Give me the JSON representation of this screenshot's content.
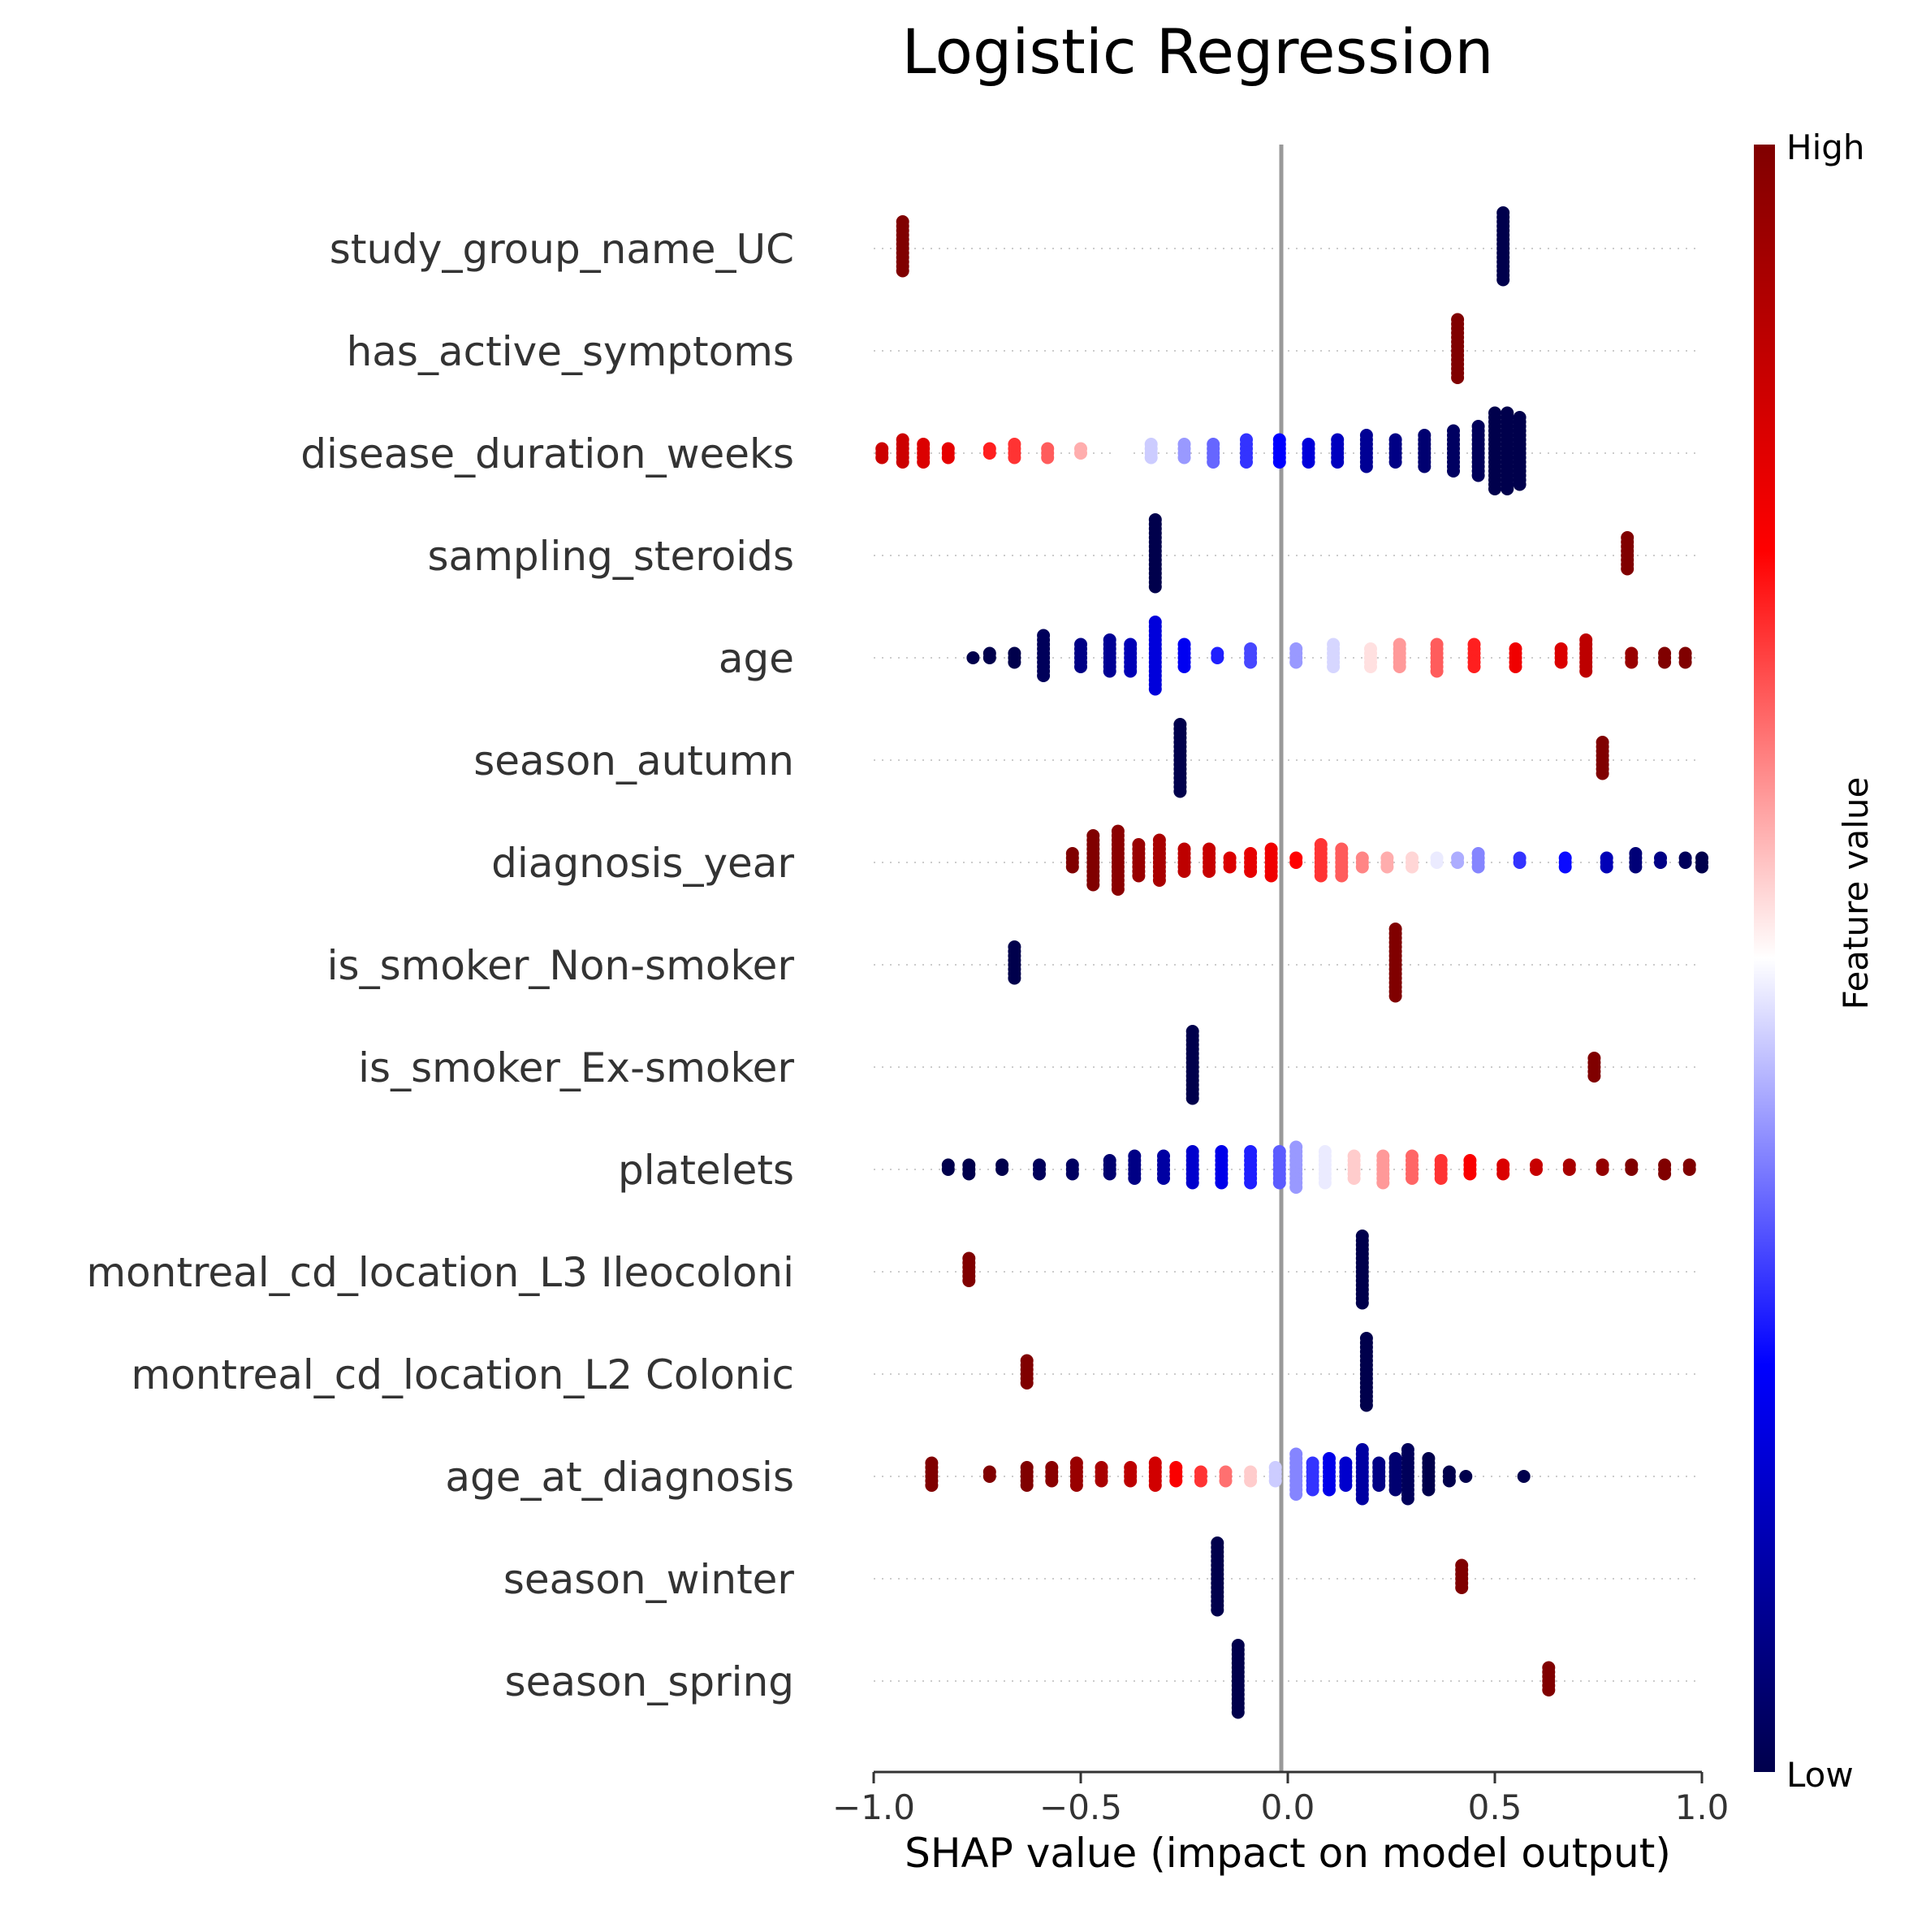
{
  "chart_data": {
    "type": "scatter",
    "subtype": "shap-beeswarm",
    "title": "Logistic Regression",
    "xlabel": "SHAP value (impact on model output)",
    "xlim": [
      -1.0,
      1.0
    ],
    "xticks": [
      -1.0,
      -0.5,
      0.0,
      0.5,
      1.0
    ],
    "xtick_labels": [
      "−1.0",
      "−0.5",
      "0.0",
      "0.5",
      "1.0"
    ],
    "zero_line": 0.0,
    "colorbar": {
      "label": "Feature value",
      "high_label": "High",
      "low_label": "Low",
      "colors": [
        "#00004c",
        "#0000ff",
        "#ffffff",
        "#ff0000",
        "#800000"
      ]
    },
    "features": [
      {
        "name": "study_group_name_UC",
        "clusters": [
          {
            "x": -0.93,
            "color": 1.0,
            "n": 12
          },
          {
            "x": 0.52,
            "color": 0.0,
            "n": 16
          }
        ]
      },
      {
        "name": "has_active_symptoms",
        "clusters": [
          {
            "x": 0.41,
            "color": 1.0,
            "n": 14
          }
        ]
      },
      {
        "name": "disease_duration_weeks",
        "clusters": [
          {
            "x": -0.98,
            "color": 0.85,
            "n": 3
          },
          {
            "x": -0.93,
            "color": 0.85,
            "n": 6
          },
          {
            "x": -0.88,
            "color": 0.82,
            "n": 5
          },
          {
            "x": -0.82,
            "color": 0.8,
            "n": 3
          },
          {
            "x": -0.72,
            "color": 0.72,
            "n": 2
          },
          {
            "x": -0.66,
            "color": 0.7,
            "n": 4
          },
          {
            "x": -0.58,
            "color": 0.66,
            "n": 3
          },
          {
            "x": -0.5,
            "color": 0.58,
            "n": 2
          },
          {
            "x": -0.4,
            "color": 0.5,
            "n": 2
          },
          {
            "x": -0.33,
            "color": 0.45,
            "n": 4
          },
          {
            "x": -0.25,
            "color": 0.4,
            "n": 4
          },
          {
            "x": -0.18,
            "color": 0.35,
            "n": 5
          },
          {
            "x": -0.1,
            "color": 0.3,
            "n": 6
          },
          {
            "x": -0.02,
            "color": 0.25,
            "n": 6
          },
          {
            "x": 0.05,
            "color": 0.2,
            "n": 5
          },
          {
            "x": 0.12,
            "color": 0.16,
            "n": 6
          },
          {
            "x": 0.19,
            "color": 0.1,
            "n": 8
          },
          {
            "x": 0.26,
            "color": 0.08,
            "n": 6
          },
          {
            "x": 0.33,
            "color": 0.05,
            "n": 8
          },
          {
            "x": 0.4,
            "color": 0.03,
            "n": 10
          },
          {
            "x": 0.46,
            "color": 0.02,
            "n": 12
          },
          {
            "x": 0.5,
            "color": 0.0,
            "n": 18
          },
          {
            "x": 0.53,
            "color": 0.0,
            "n": 18
          },
          {
            "x": 0.56,
            "color": 0.0,
            "n": 16
          }
        ]
      },
      {
        "name": "sampling_steroids",
        "clusters": [
          {
            "x": -0.32,
            "color": 0.0,
            "n": 16
          },
          {
            "x": 0.82,
            "color": 1.0,
            "n": 8
          }
        ]
      },
      {
        "name": "age",
        "clusters": [
          {
            "x": -0.76,
            "color": 0.0,
            "n": 1
          },
          {
            "x": -0.72,
            "color": 0.0,
            "n": 2
          },
          {
            "x": -0.66,
            "color": 0.0,
            "n": 3
          },
          {
            "x": -0.59,
            "color": 0.02,
            "n": 10
          },
          {
            "x": -0.5,
            "color": 0.08,
            "n": 6
          },
          {
            "x": -0.43,
            "color": 0.1,
            "n": 8
          },
          {
            "x": -0.38,
            "color": 0.15,
            "n": 7
          },
          {
            "x": -0.32,
            "color": 0.2,
            "n": 16
          },
          {
            "x": -0.25,
            "color": 0.23,
            "n": 6
          },
          {
            "x": -0.17,
            "color": 0.28,
            "n": 2
          },
          {
            "x": -0.09,
            "color": 0.32,
            "n": 4
          },
          {
            "x": 0.02,
            "color": 0.4,
            "n": 4
          },
          {
            "x": 0.11,
            "color": 0.46,
            "n": 6
          },
          {
            "x": 0.2,
            "color": 0.53,
            "n": 5
          },
          {
            "x": 0.27,
            "color": 0.6,
            "n": 6
          },
          {
            "x": 0.36,
            "color": 0.66,
            "n": 7
          },
          {
            "x": 0.45,
            "color": 0.72,
            "n": 6
          },
          {
            "x": 0.55,
            "color": 0.78,
            "n": 5
          },
          {
            "x": 0.66,
            "color": 0.82,
            "n": 4
          },
          {
            "x": 0.72,
            "color": 0.88,
            "n": 8
          },
          {
            "x": 0.83,
            "color": 0.95,
            "n": 3
          },
          {
            "x": 0.91,
            "color": 1.0,
            "n": 3
          },
          {
            "x": 0.96,
            "color": 1.0,
            "n": 3
          }
        ]
      },
      {
        "name": "season_autumn",
        "clusters": [
          {
            "x": -0.26,
            "color": 0.0,
            "n": 16
          },
          {
            "x": 0.76,
            "color": 1.0,
            "n": 8
          }
        ]
      },
      {
        "name": "diagnosis_year",
        "clusters": [
          {
            "x": -0.52,
            "color": 1.0,
            "n": 4
          },
          {
            "x": -0.47,
            "color": 1.0,
            "n": 12
          },
          {
            "x": -0.41,
            "color": 0.98,
            "n": 14
          },
          {
            "x": -0.36,
            "color": 0.95,
            "n": 8
          },
          {
            "x": -0.31,
            "color": 0.92,
            "n": 10
          },
          {
            "x": -0.25,
            "color": 0.88,
            "n": 6
          },
          {
            "x": -0.19,
            "color": 0.86,
            "n": 6
          },
          {
            "x": -0.14,
            "color": 0.82,
            "n": 3
          },
          {
            "x": -0.09,
            "color": 0.8,
            "n": 5
          },
          {
            "x": -0.04,
            "color": 0.78,
            "n": 7
          },
          {
            "x": 0.02,
            "color": 0.75,
            "n": 2
          },
          {
            "x": 0.08,
            "color": 0.7,
            "n": 8
          },
          {
            "x": 0.13,
            "color": 0.66,
            "n": 7
          },
          {
            "x": 0.18,
            "color": 0.62,
            "n": 3
          },
          {
            "x": 0.24,
            "color": 0.58,
            "n": 3
          },
          {
            "x": 0.3,
            "color": 0.54,
            "n": 3
          },
          {
            "x": 0.36,
            "color": 0.48,
            "n": 2
          },
          {
            "x": 0.41,
            "color": 0.42,
            "n": 2
          },
          {
            "x": 0.46,
            "color": 0.38,
            "n": 4
          },
          {
            "x": 0.56,
            "color": 0.3,
            "n": 2
          },
          {
            "x": 0.67,
            "color": 0.26,
            "n": 3
          },
          {
            "x": 0.77,
            "color": 0.15,
            "n": 3
          },
          {
            "x": 0.84,
            "color": 0.06,
            "n": 4
          },
          {
            "x": 0.9,
            "color": 0.08,
            "n": 2
          },
          {
            "x": 0.96,
            "color": 0.02,
            "n": 2
          },
          {
            "x": 1.0,
            "color": 0.0,
            "n": 3
          }
        ]
      },
      {
        "name": "is_smoker_Non-smoker",
        "clusters": [
          {
            "x": -0.66,
            "color": 0.0,
            "n": 8
          },
          {
            "x": 0.26,
            "color": 1.0,
            "n": 16
          }
        ]
      },
      {
        "name": "is_smoker_Ex-smoker",
        "clusters": [
          {
            "x": -0.23,
            "color": 0.0,
            "n": 16
          },
          {
            "x": 0.74,
            "color": 1.0,
            "n": 5
          }
        ]
      },
      {
        "name": "platelets",
        "clusters": [
          {
            "x": -0.82,
            "color": 0.0,
            "n": 2
          },
          {
            "x": -0.77,
            "color": 0.0,
            "n": 3
          },
          {
            "x": -0.69,
            "color": 0.0,
            "n": 2
          },
          {
            "x": -0.6,
            "color": 0.02,
            "n": 3
          },
          {
            "x": -0.52,
            "color": 0.03,
            "n": 3
          },
          {
            "x": -0.43,
            "color": 0.05,
            "n": 4
          },
          {
            "x": -0.37,
            "color": 0.08,
            "n": 6
          },
          {
            "x": -0.3,
            "color": 0.12,
            "n": 6
          },
          {
            "x": -0.23,
            "color": 0.18,
            "n": 8
          },
          {
            "x": -0.16,
            "color": 0.22,
            "n": 8
          },
          {
            "x": -0.09,
            "color": 0.28,
            "n": 8
          },
          {
            "x": -0.02,
            "color": 0.34,
            "n": 8
          },
          {
            "x": 0.02,
            "color": 0.4,
            "n": 10
          },
          {
            "x": 0.09,
            "color": 0.48,
            "n": 8
          },
          {
            "x": 0.16,
            "color": 0.55,
            "n": 6
          },
          {
            "x": 0.23,
            "color": 0.6,
            "n": 7
          },
          {
            "x": 0.3,
            "color": 0.65,
            "n": 6
          },
          {
            "x": 0.37,
            "color": 0.7,
            "n": 5
          },
          {
            "x": 0.44,
            "color": 0.76,
            "n": 4
          },
          {
            "x": 0.52,
            "color": 0.82,
            "n": 3
          },
          {
            "x": 0.6,
            "color": 0.86,
            "n": 2
          },
          {
            "x": 0.68,
            "color": 0.92,
            "n": 2
          },
          {
            "x": 0.76,
            "color": 0.96,
            "n": 2
          },
          {
            "x": 0.83,
            "color": 1.0,
            "n": 2
          },
          {
            "x": 0.91,
            "color": 1.0,
            "n": 3
          },
          {
            "x": 0.97,
            "color": 1.0,
            "n": 2
          }
        ]
      },
      {
        "name": "montreal_cd_location_L3 Ileocoloni",
        "clusters": [
          {
            "x": -0.77,
            "color": 1.0,
            "n": 6
          },
          {
            "x": 0.18,
            "color": 0.0,
            "n": 16
          }
        ]
      },
      {
        "name": "montreal_cd_location_L2 Colonic",
        "clusters": [
          {
            "x": -0.63,
            "color": 1.0,
            "n": 6
          },
          {
            "x": 0.19,
            "color": 0.0,
            "n": 16
          }
        ]
      },
      {
        "name": "age_at_diagnosis",
        "clusters": [
          {
            "x": -0.86,
            "color": 1.0,
            "n": 6
          },
          {
            "x": -0.72,
            "color": 1.0,
            "n": 2
          },
          {
            "x": -0.63,
            "color": 1.0,
            "n": 5
          },
          {
            "x": -0.57,
            "color": 0.98,
            "n": 4
          },
          {
            "x": -0.51,
            "color": 0.95,
            "n": 6
          },
          {
            "x": -0.45,
            "color": 0.92,
            "n": 4
          },
          {
            "x": -0.38,
            "color": 0.88,
            "n": 4
          },
          {
            "x": -0.32,
            "color": 0.84,
            "n": 6
          },
          {
            "x": -0.27,
            "color": 0.76,
            "n": 4
          },
          {
            "x": -0.21,
            "color": 0.7,
            "n": 3
          },
          {
            "x": -0.15,
            "color": 0.64,
            "n": 3
          },
          {
            "x": -0.09,
            "color": 0.55,
            "n": 3
          },
          {
            "x": -0.03,
            "color": 0.45,
            "n": 4
          },
          {
            "x": 0.02,
            "color": 0.38,
            "n": 10
          },
          {
            "x": 0.06,
            "color": 0.3,
            "n": 7
          },
          {
            "x": 0.1,
            "color": 0.22,
            "n": 8
          },
          {
            "x": 0.14,
            "color": 0.18,
            "n": 6
          },
          {
            "x": 0.18,
            "color": 0.12,
            "n": 12
          },
          {
            "x": 0.22,
            "color": 0.08,
            "n": 6
          },
          {
            "x": 0.26,
            "color": 0.05,
            "n": 8
          },
          {
            "x": 0.29,
            "color": 0.02,
            "n": 12
          },
          {
            "x": 0.34,
            "color": 0.0,
            "n": 8
          },
          {
            "x": 0.39,
            "color": 0.0,
            "n": 3
          },
          {
            "x": 0.43,
            "color": 0.0,
            "n": 1
          },
          {
            "x": 0.57,
            "color": 0.0,
            "n": 1
          }
        ]
      },
      {
        "name": "season_winter",
        "clusters": [
          {
            "x": -0.17,
            "color": 0.0,
            "n": 16
          },
          {
            "x": 0.42,
            "color": 1.0,
            "n": 6
          }
        ]
      },
      {
        "name": "season_spring",
        "clusters": [
          {
            "x": -0.12,
            "color": 0.0,
            "n": 16
          },
          {
            "x": 0.63,
            "color": 1.0,
            "n": 6
          }
        ]
      }
    ]
  }
}
